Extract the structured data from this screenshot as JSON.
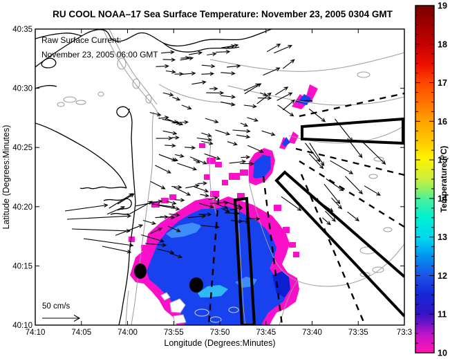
{
  "figure": {
    "title": "RU COOL  NOAA–17  Sea Surface Temperature:  November 23, 2005 0304 GMT",
    "annotation": {
      "line1": "Raw Surface Current:",
      "line2": "November 23, 2005 06:00 GMT"
    },
    "scale_arrow_label": "50 cm/s",
    "colors": {
      "title_blue": "#0000cd",
      "annotation_blue": "#0000cd",
      "sst_magenta": "#fa10c8",
      "sst_blue": "#1742ee",
      "sst_blue_light": "#3f8df8",
      "sst_cyan": "#2fb9f4",
      "sst_blue_dark": "#0b1ed2",
      "contour_gray": "#9a9a9a",
      "coast_black": "#000000"
    }
  },
  "chart_data": {
    "type": "heatmap",
    "subtype": "geographic SST map with surface current vectors",
    "title": "RU COOL  NOAA–17  Sea Surface Temperature:  November 23, 2005 0304 GMT",
    "xlabel": "Longitude (Degrees:Minutes)",
    "ylabel": "Latitude (Degrees:Minutes)",
    "x_tick_labels": [
      "74:10",
      "74:05",
      "74:00",
      "73:55",
      "73:50",
      "73:45",
      "73:40",
      "73:35",
      "73:3"
    ],
    "y_tick_labels": [
      "40:35",
      "40:30",
      "40:25",
      "40:20",
      "40:15",
      "40:10"
    ],
    "x_range": [
      "74:10 W",
      "73:30 W"
    ],
    "y_range": [
      "40:10 N",
      "40:35 N"
    ],
    "grid": false,
    "colorbar": {
      "label": "Temperature (°C)",
      "min": 10,
      "max": 19,
      "tick_labels": [
        19,
        18,
        17,
        16,
        15,
        14,
        13,
        12,
        11,
        10
      ],
      "minor_tick_step": 0.25,
      "gradient_top_to_bottom": [
        [
          0.0,
          "#7a0000"
        ],
        [
          0.05,
          "#9b0000"
        ],
        [
          0.11,
          "#c40000"
        ],
        [
          0.17,
          "#ee1000"
        ],
        [
          0.22,
          "#ff4500"
        ],
        [
          0.28,
          "#ff7300"
        ],
        [
          0.33,
          "#ffa000"
        ],
        [
          0.39,
          "#ffc800"
        ],
        [
          0.44,
          "#fff200"
        ],
        [
          0.5,
          "#c8f03c"
        ],
        [
          0.53,
          "#8cf064"
        ],
        [
          0.56,
          "#46f0a0"
        ],
        [
          0.61,
          "#00f0d2"
        ],
        [
          0.67,
          "#00d8f0"
        ],
        [
          0.72,
          "#0096f0"
        ],
        [
          0.78,
          "#1e50e8"
        ],
        [
          0.83,
          "#1428d8"
        ],
        [
          0.885,
          "#3214c8"
        ],
        [
          0.91,
          "#6414c8"
        ],
        [
          0.95,
          "#c814c8"
        ],
        [
          1.0,
          "#ff14b4"
        ]
      ]
    },
    "sst": {
      "note": "coordinates are screenshot pixels; SST cold plume ~10-13 C (magenta rim, blue core)",
      "main_outer_magenta": [
        [
          188,
          398
        ],
        [
          196,
          372
        ],
        [
          210,
          360
        ],
        [
          214,
          338
        ],
        [
          232,
          322
        ],
        [
          250,
          310
        ],
        [
          266,
          300
        ],
        [
          282,
          290
        ],
        [
          300,
          286
        ],
        [
          316,
          290
        ],
        [
          330,
          284
        ],
        [
          348,
          290
        ],
        [
          366,
          296
        ],
        [
          380,
          304
        ],
        [
          394,
          312
        ],
        [
          404,
          324
        ],
        [
          414,
          338
        ],
        [
          419,
          352
        ],
        [
          414,
          368
        ],
        [
          408,
          382
        ],
        [
          416,
          394
        ],
        [
          430,
          402
        ],
        [
          433,
          418
        ],
        [
          428,
          436
        ],
        [
          414,
          446
        ],
        [
          400,
          452
        ],
        [
          394,
          462
        ],
        [
          390,
          470
        ],
        [
          256,
          470
        ],
        [
          250,
          458
        ],
        [
          238,
          448
        ],
        [
          230,
          434
        ],
        [
          220,
          422
        ],
        [
          208,
          410
        ],
        [
          196,
          408
        ]
      ],
      "main_inner_blue": [
        [
          212,
          392
        ],
        [
          220,
          372
        ],
        [
          228,
          352
        ],
        [
          242,
          334
        ],
        [
          258,
          320
        ],
        [
          274,
          310
        ],
        [
          292,
          302
        ],
        [
          310,
          302
        ],
        [
          328,
          298
        ],
        [
          344,
          304
        ],
        [
          358,
          312
        ],
        [
          372,
          320
        ],
        [
          384,
          330
        ],
        [
          394,
          344
        ],
        [
          400,
          358
        ],
        [
          396,
          374
        ],
        [
          390,
          388
        ],
        [
          398,
          400
        ],
        [
          412,
          408
        ],
        [
          416,
          422
        ],
        [
          410,
          436
        ],
        [
          398,
          444
        ],
        [
          388,
          452
        ],
        [
          382,
          462
        ],
        [
          378,
          470
        ],
        [
          268,
          470
        ],
        [
          262,
          454
        ],
        [
          252,
          440
        ],
        [
          240,
          426
        ],
        [
          228,
          414
        ],
        [
          216,
          404
        ]
      ],
      "streaks": [
        {
          "fill": "light",
          "pts": [
            [
              240,
              338
            ],
            [
              258,
              326
            ],
            [
              278,
              322
            ],
            [
              292,
              326
            ],
            [
              284,
              336
            ],
            [
              266,
              342
            ],
            [
              248,
              344
            ]
          ]
        },
        {
          "fill": "cyan",
          "pts": [
            [
              286,
              424
            ],
            [
              300,
              414
            ],
            [
              318,
              412
            ],
            [
              330,
              418
            ],
            [
              320,
              428
            ],
            [
              302,
              430
            ],
            [
              290,
              430
            ]
          ]
        },
        {
          "fill": "light",
          "pts": [
            [
              340,
              408
            ],
            [
              356,
              400
            ],
            [
              372,
              404
            ],
            [
              366,
              414
            ],
            [
              350,
              416
            ]
          ]
        },
        {
          "fill": "dark",
          "pts": [
            [
              394,
              398
            ],
            [
              408,
              392
            ],
            [
              418,
              400
            ],
            [
              420,
              418
            ],
            [
              412,
              430
            ],
            [
              400,
              424
            ]
          ]
        }
      ],
      "white_holes": [
        [
          [
            246,
            438
          ],
          [
            260,
            432
          ],
          [
            268,
            441
          ],
          [
            261,
            452
          ],
          [
            248,
            451
          ]
        ],
        [
          [
            251,
            457
          ],
          [
            265,
            455
          ],
          [
            269,
            466
          ],
          [
            253,
            468
          ]
        ],
        [
          [
            233,
            427
          ],
          [
            241,
            423
          ],
          [
            246,
            430
          ],
          [
            238,
            434
          ]
        ]
      ],
      "light_rings": [
        [
          292,
          452,
          10,
          5
        ],
        [
          312,
          462,
          8,
          4
        ],
        [
          338,
          448,
          7,
          4
        ]
      ],
      "scattered_magenta": [
        [
          219,
          291,
          12,
          9
        ],
        [
          233,
          286,
          11,
          8
        ],
        [
          245,
          281,
          10,
          8
        ],
        [
          304,
          276,
          13,
          9
        ],
        [
          343,
          279,
          11,
          8
        ],
        [
          396,
          296,
          11,
          9
        ],
        [
          409,
          328,
          10,
          9
        ],
        [
          204,
          354,
          11,
          9
        ],
        [
          186,
          342,
          9,
          8
        ],
        [
          418,
          350,
          10,
          8
        ],
        [
          424,
          364,
          9,
          8
        ],
        [
          396,
          392,
          9,
          8
        ],
        [
          331,
          250,
          16,
          10
        ],
        [
          347,
          245,
          12,
          9
        ],
        [
          299,
          228,
          13,
          9
        ],
        [
          311,
          234,
          10,
          8
        ],
        [
          295,
          252,
          9,
          8
        ],
        [
          321,
          260,
          9,
          8
        ],
        [
          288,
          207,
          9,
          7
        ]
      ],
      "small_patches": [
        {
          "mag": [
            [
              422,
              154
            ],
            [
              434,
              136
            ],
            [
              442,
              142
            ],
            [
              448,
              122
            ],
            [
              460,
              128
            ],
            [
              452,
              144
            ],
            [
              444,
              150
            ],
            [
              436,
              158
            ]
          ],
          "blue": [
            [
              430,
              148
            ],
            [
              440,
              136
            ],
            [
              450,
              142
            ],
            [
              444,
              152
            ]
          ],
          "darkline": [
            428,
            146,
            452,
            146
          ]
        },
        {
          "mag": [
            [
              404,
              214
            ],
            [
              410,
              198
            ],
            [
              418,
              204
            ],
            [
              424,
              190
            ],
            [
              432,
              196
            ],
            [
              426,
              208
            ],
            [
              418,
              206
            ],
            [
              412,
              216
            ]
          ],
          "blue": [
            [
              408,
              208
            ],
            [
              414,
              198
            ],
            [
              420,
              206
            ],
            [
              412,
              212
            ]
          ]
        },
        {
          "mag": [
            [
              360,
              264
            ],
            [
              360,
              234
            ],
            [
              368,
              222
            ],
            [
              382,
              214
            ],
            [
              394,
              218
            ],
            [
              398,
              232
            ],
            [
              394,
              250
            ],
            [
              384,
              262
            ],
            [
              370,
              268
            ]
          ],
          "blue": [
            [
              366,
              256
            ],
            [
              368,
              234
            ],
            [
              380,
              224
            ],
            [
              391,
              226
            ],
            [
              392,
              244
            ],
            [
              382,
              256
            ],
            [
              370,
              258
            ]
          ]
        }
      ]
    },
    "vectors": {
      "legend": "50 cm/s",
      "clusters": [
        [
          215,
          62,
          130,
          62,
          18,
          -14,
          8,
          12,
          22
        ],
        [
          212,
          124,
          168,
          108,
          40,
          -8,
          24,
          10,
          26
        ],
        [
          216,
          232,
          148,
          100,
          30,
          -18,
          28,
          12,
          30
        ],
        [
          352,
          68,
          72,
          92,
          10,
          -42,
          -16,
          16,
          30
        ],
        [
          398,
          150,
          138,
          148,
          16,
          30,
          62,
          22,
          46
        ],
        [
          452,
          284,
          58,
          38,
          4,
          34,
          52,
          14,
          22
        ],
        [
          152,
          294,
          92,
          56,
          12,
          -32,
          18,
          18,
          44
        ]
      ],
      "arrows": [
        [
          97,
          317,
          -3,
          92
        ],
        [
          104,
          331,
          2,
          84
        ],
        [
          121,
          345,
          8,
          72
        ],
        [
          94,
          305,
          -8,
          62
        ],
        [
          148,
          356,
          12,
          42
        ],
        [
          210,
          352,
          5,
          30
        ],
        [
          228,
          360,
          14,
          24
        ],
        [
          246,
          366,
          20,
          18
        ]
      ]
    },
    "overlays": {
      "shipping_lanes": [
        "M340,289 L357,287 L368,470 L350,470 Z",
        "M437,183 L583,172 L583,207 L437,201 Z",
        "M585,400 L412,249 L400,261 L585,457"
      ],
      "dashed_boundaries": [
        [
          433,
          168,
          585,
          135
        ],
        [
          428,
          215,
          585,
          253
        ],
        [
          433,
          233,
          585,
          328
        ],
        [
          436,
          252,
          528,
          470
        ],
        [
          381,
          255,
          408,
          470
        ],
        [
          316,
          287,
          302,
          470
        ]
      ],
      "buoys": [
        [
          203,
          392,
          9,
          11
        ],
        [
          284,
          412,
          10,
          11
        ]
      ]
    },
    "basemap": {
      "coastlines": [
        "M51,97 C70,82 95,66 118,52 C128,46 142,40 152,44 C160,48 157,56 166,59 C180,63 192,50 201,48 C214,45 224,56 236,62 C252,70 271,66 289,60 C307,54 330,59 348,57 C362,55 377,48 393,42",
        "M236,62 C252,76 272,78 292,72 C310,67 330,72 346,68",
        "M51,56 C64,52 78,49 92,48 C104,47 112,50 118,52",
        "M60,92 C64,84 74,82 79,87 C84,92 78,98 70,98 C64,98 60,96 60,92 Z",
        "M51,128 C62,124 72,122 82,125",
        "M51,178 C74,185 98,199 121,212 C139,223 153,233 165,245 C173,253 179,262 183,272",
        "M183,272 C173,268 164,274 154,271 C145,268 138,275 130,272 C124,270 120,274 116,272",
        "M150,290 C160,286 169,292 179,288 C187,285 193,292 189,298 C185,304 176,300 170,304",
        "M160,310 C170,306 178,312 186,309",
        "M196,292 L192,240 L190,200 L191,178 C191,163 184,151 174,155 C166,158 168,168 176,169 C183,170 187,163 187,157",
        "M196,292 C194,318 189,344 187,370 C186,394 182,416 178,438 C176,452 174,462 172,470"
      ],
      "gray_contours": [
        "M304,86 C340,93 380,101 420,103 C460,105 500,98 540,88 C556,84 572,80 585,76",
        "M330,124 C370,134 412,143 452,149 C492,155 540,152 585,140",
        "M418,196 C450,206 490,210 525,204 C548,200 568,192 585,182",
        "M150,44 C159,63 169,85 181,101 C193,119 205,133 219,149 C225,157 229,163 231,171",
        "M158,42 C169,65 181,89 195,109 C207,125 217,137 227,151",
        "M230,122 C250,134 271,141 293,145 C311,149 327,147 341,151",
        "M222,162 C218,192 223,222 219,252 C215,282 211,312 207,342 C203,374 199,406 195,438 C193,452 191,462 190,470",
        "M186,420 C184,436 183,452 182,470",
        "M360,262 C369,301 381,341 397,375 C409,399 429,409 457,413 C489,417 521,409 545,393 C565,379 577,363 585,353",
        "M344,294 C346,340 349,392 352,442 C353,454 354,463 355,470",
        "M404,470 C411,446 419,421 431,405",
        "M306,196 C303,222 302,248 305,274 C307,288 310,300 314,312"
      ],
      "gray_ellipses": [
        [
          101,
          144,
          9,
          4
        ],
        [
          117,
          148,
          7,
          3
        ],
        [
          88,
          151,
          5,
          3
        ],
        [
          176,
          92,
          6,
          8
        ],
        [
          197,
          121,
          5,
          7
        ],
        [
          215,
          143,
          4,
          6
        ],
        [
          146,
          136,
          4,
          3
        ],
        [
          526,
          108,
          9,
          4
        ],
        [
          548,
          230,
          7,
          3
        ],
        [
          532,
          362,
          11,
          5
        ],
        [
          547,
          390,
          8,
          4
        ],
        [
          561,
          332,
          6,
          3
        ],
        [
          528,
          397,
          7,
          3
        ],
        [
          540,
          255,
          6,
          3
        ]
      ]
    }
  }
}
